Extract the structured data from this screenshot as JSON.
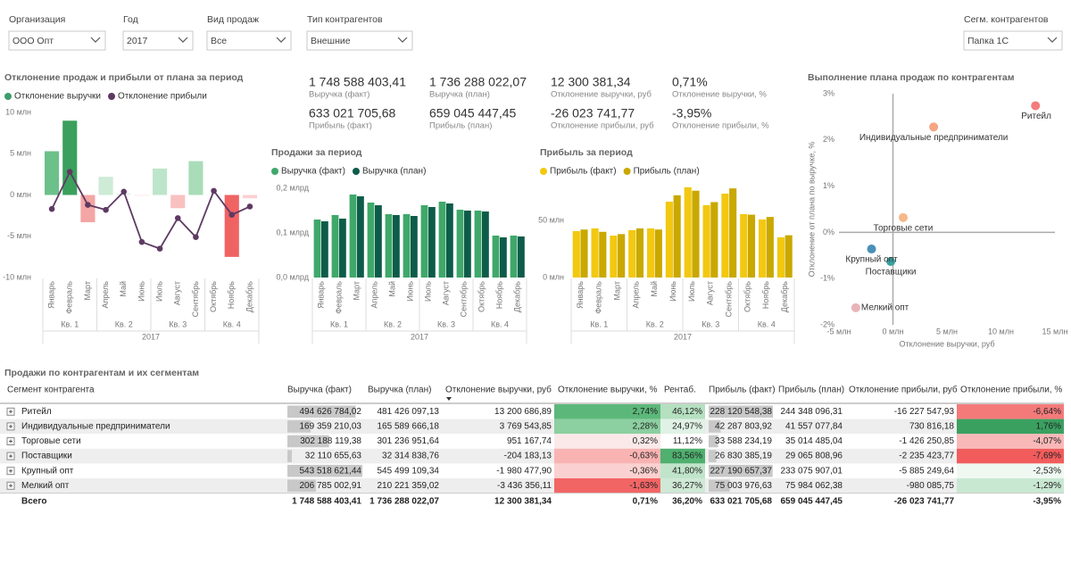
{
  "filters": [
    {
      "label": "Организация",
      "value": "ООО Опт"
    },
    {
      "label": "Год",
      "value": "2017"
    },
    {
      "label": "Вид продаж",
      "value": "Все"
    },
    {
      "label": "Тип контрагентов",
      "value": "Внешние"
    },
    {
      "label": "Сегм. контрагентов",
      "value": "Папка 1С"
    }
  ],
  "kpis": [
    {
      "value": "1 748 588 403,41",
      "label": "Выручка (факт)"
    },
    {
      "value": "1 736 288 022,07",
      "label": "Выручка (план)"
    },
    {
      "value": "12 300 381,34",
      "label": "Отклонение выручки, руб"
    },
    {
      "value": "0,71%",
      "label": "Отклонение выручки, %"
    },
    {
      "value": "633 021 705,68",
      "label": "Прибыль (факт)"
    },
    {
      "value": "659 045 447,45",
      "label": "Прибыль (план)"
    },
    {
      "value": "-26 023 741,77",
      "label": "Отклонение прибыли, руб"
    },
    {
      "value": "-3,95%",
      "label": "Отклонение прибыли, %"
    }
  ],
  "chart_data": [
    {
      "type": "combo",
      "title": "Отклонение продаж и прибыли от плана за период",
      "categories": [
        "Январь",
        "Февраль",
        "Март",
        "Апрель",
        "Май",
        "Июнь",
        "Июль",
        "Август",
        "Сентябрь",
        "Октябрь",
        "Ноябрь",
        "Декабрь"
      ],
      "groups": [
        "Кв. 1",
        "Кв. 2",
        "Кв. 3",
        "Кв. 4"
      ],
      "year": "2017",
      "series": [
        {
          "name": "Отклонение выручки",
          "kind": "bar",
          "color": "#3d9d6b",
          "colors": [
            "#6cc08a",
            "#3aa05c",
            "#f4a5a5",
            "#cdebd6",
            "#e3f3e8",
            "#fde4e4",
            "#bde5c9",
            "#f9c0c0",
            "#a9dcb8",
            "#eef8f1",
            "#f06363",
            "#fbd0d0"
          ],
          "values": [
            5.3,
            9.0,
            -3.3,
            2.2,
            0.2,
            -0.1,
            3.2,
            -1.6,
            4.1,
            0.1,
            -7.5,
            -0.4
          ]
        },
        {
          "name": "Отклонение прибыли",
          "kind": "line",
          "color": "#5e3a63",
          "values": [
            -1.7,
            2.8,
            -1.2,
            -1.8,
            0.4,
            -5.7,
            -6.5,
            -2.8,
            -5.1,
            0.5,
            -2.4,
            -1.4
          ]
        }
      ],
      "ylim": [
        -10,
        10
      ],
      "yticks": [
        {
          "value": 10,
          "label": "10 млн"
        },
        {
          "value": 5,
          "label": "5 млн"
        },
        {
          "value": 0,
          "label": "0 млн"
        },
        {
          "value": -5,
          "label": "-5 млн"
        },
        {
          "value": -10,
          "label": "-10 млн"
        }
      ]
    },
    {
      "type": "bar",
      "title": "Продажи за период",
      "categories": [
        "Январь",
        "Февраль",
        "Март",
        "Апрель",
        "Май",
        "Июнь",
        "Июль",
        "Август",
        "Сентябрь",
        "Октябрь",
        "Ноябрь",
        "Декабрь"
      ],
      "groups": [
        "Кв. 1",
        "Кв. 2",
        "Кв. 3",
        "Кв. 4"
      ],
      "year": "2017",
      "series": [
        {
          "name": "Выручка (факт)",
          "color": "#3fa86a",
          "values": [
            0.13,
            0.14,
            0.186,
            0.168,
            0.142,
            0.142,
            0.162,
            0.17,
            0.152,
            0.15,
            0.094,
            0.094
          ]
        },
        {
          "name": "Выручка (план)",
          "color": "#0d5c4a",
          "values": [
            0.126,
            0.132,
            0.182,
            0.162,
            0.14,
            0.138,
            0.158,
            0.166,
            0.15,
            0.148,
            0.09,
            0.092
          ]
        }
      ],
      "ylim": [
        0,
        0.21
      ],
      "yticks": [
        {
          "value": 0,
          "label": "0,0 млрд"
        },
        {
          "value": 0.1,
          "label": "0,1 млрд"
        },
        {
          "value": 0.2,
          "label": "0,2 млрд"
        }
      ]
    },
    {
      "type": "bar",
      "title": "Прибыль за период",
      "categories": [
        "Январь",
        "Февраль",
        "Март",
        "Апрель",
        "Май",
        "Июнь",
        "Июль",
        "Август",
        "Сентябрь",
        "Октябрь",
        "Ноябрь",
        "Декабрь"
      ],
      "groups": [
        "Кв. 1",
        "Кв. 2",
        "Кв. 3",
        "Кв. 4"
      ],
      "year": "2017",
      "series": [
        {
          "name": "Прибыль (факт)",
          "color": "#f2c811",
          "values": [
            40.6,
            43,
            36.7,
            41.4,
            43,
            66.4,
            79,
            63.3,
            73.4,
            55.5,
            50.8,
            35.2
          ]
        },
        {
          "name": "Прибыль (план)",
          "color": "#c9a800",
          "values": [
            42,
            40,
            38,
            43,
            42,
            72,
            76,
            66,
            78,
            55,
            53,
            37
          ]
        }
      ],
      "ylim": [
        0,
        82
      ],
      "yticks": [
        {
          "value": 0,
          "label": "0 млн"
        },
        {
          "value": 50,
          "label": "50 млн"
        }
      ]
    },
    {
      "type": "scatter",
      "title": "Выполнение плана продаж по контрагентам",
      "x_label": "Отклонение выручки, руб",
      "y_label": "Отклонение от плана по выручке, %",
      "labels": [
        "Ритейл",
        "Индивидуальные предприниматели",
        "Торговые сети",
        "Поставщики",
        "Крупный опт",
        "Мелкий опт"
      ],
      "x": [
        13.2,
        3.77,
        0.95,
        -0.2,
        -1.98,
        -3.44
      ],
      "values": [
        2.74,
        2.28,
        0.32,
        -0.63,
        -0.36,
        -1.63
      ],
      "colors": [
        "#f47c7c",
        "#f4a582",
        "#f6b88a",
        "#3aa0a0",
        "#4a90b8",
        "#e8b4b8"
      ],
      "xlim": [
        -5,
        15
      ],
      "xticks": [
        {
          "value": -5,
          "label": "-5 млн"
        },
        {
          "value": 0,
          "label": "0 млн"
        },
        {
          "value": 5,
          "label": "5 млн"
        },
        {
          "value": 10,
          "label": "10 млн"
        },
        {
          "value": 15,
          "label": "15 млн"
        }
      ],
      "ylim": [
        -2,
        3
      ],
      "yticks": [
        {
          "value": 3,
          "label": "3%"
        },
        {
          "value": 2,
          "label": "2%"
        },
        {
          "value": 1,
          "label": "1%"
        },
        {
          "value": 0,
          "label": "0%"
        },
        {
          "value": -1,
          "label": "-1%"
        },
        {
          "value": -2,
          "label": "-2%"
        }
      ]
    }
  ],
  "table": {
    "title": "Продажи по контрагентам и их сегментам",
    "columns": [
      {
        "name": "Сегмент контрагента"
      },
      {
        "name": "Выручка (факт)",
        "bar_color": "#c8c8c8"
      },
      {
        "name": "Выручка (план)"
      },
      {
        "name": "Отклонение выручки, руб"
      },
      {
        "name": "Отклонение выручки, %",
        "colors": [
          "#5cb87a",
          "#8ccfa0",
          "#fbe9e9",
          "#f9b3b3",
          "#fbd0d0",
          "#f26565"
        ]
      },
      {
        "name": "Рентаб.",
        "colors": [
          "#b5e0c0",
          "#e0f2e5",
          "#ffffff",
          "#4fb06f",
          "#c0e4ca",
          "#cfe9d6"
        ]
      },
      {
        "name": "Прибыль (факт)",
        "bar_color": "#c8c8c8"
      },
      {
        "name": "Прибыль (план)"
      },
      {
        "name": "Отклонение прибыли, руб"
      },
      {
        "name": "Отклонение прибыли, %",
        "colors": [
          "#f47a7a",
          "#3aa060",
          "#f9b8b8",
          "#f25c5c",
          "#f0f8f2",
          "#c9e8d2"
        ]
      }
    ],
    "rows": [
      [
        "Ритейл",
        "494 626 784,02",
        "481 426 097,13",
        "13 200 686,89",
        "2,74%",
        "46,12%",
        "228 120 548,38",
        "244 348 096,31",
        "-16 227 547,93",
        "-6,64%"
      ],
      [
        "Индивидуальные предприниматели",
        "169 359 210,03",
        "165 589 666,18",
        "3 769 543,85",
        "2,28%",
        "24,97%",
        "42 287 803,92",
        "41 557 077,84",
        "730 816,18",
        "1,76%"
      ],
      [
        "Торговые сети",
        "302 188 119,38",
        "301 236 951,64",
        "951 167,74",
        "0,32%",
        "11,12%",
        "33 588 234,19",
        "35 014 485,04",
        "-1 426 250,85",
        "-4,07%"
      ],
      [
        "Поставщики",
        "32 110 655,63",
        "32 314 838,76",
        "-204 183,13",
        "-0,63%",
        "83,56%",
        "26 830 385,19",
        "29 065 808,96",
        "-2 235 423,77",
        "-7,69%"
      ],
      [
        "Крупный опт",
        "543 518 621,44",
        "545 499 109,34",
        "-1 980 477,90",
        "-0,36%",
        "41,80%",
        "227 190 657,37",
        "233 075 907,01",
        "-5 885 249,64",
        "-2,53%"
      ],
      [
        "Мелкий опт",
        "206 785 002,91",
        "210 221 359,02",
        "-3 436 356,11",
        "-1,63%",
        "36,27%",
        "75 003 976,63",
        "75 984 062,38",
        "-980 085,75",
        "-1,29%"
      ]
    ],
    "total": [
      "Всего",
      "1 748 588 403,41",
      "1 736 288 022,07",
      "12 300 381,34",
      "0,71%",
      "36,20%",
      "633 021 705,68",
      "659 045 447,45",
      "-26 023 741,77",
      "-3,95%"
    ]
  }
}
